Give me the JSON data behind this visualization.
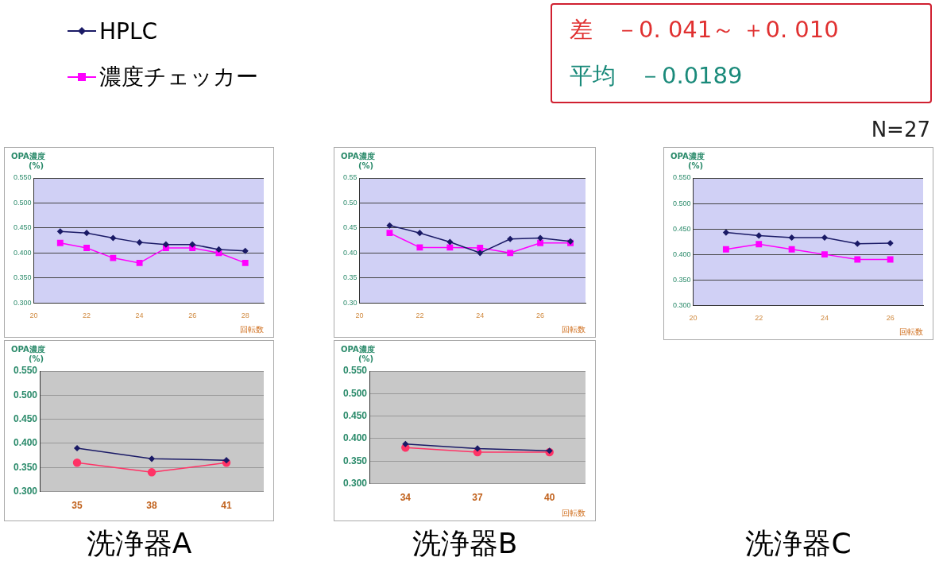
{
  "chart_data": [
    {
      "type": "line",
      "xlabel": "回転数",
      "ylabel": "OPA濃度\n(%)",
      "x": [
        21,
        22,
        23,
        24,
        25,
        26,
        27,
        28
      ],
      "xlim": [
        20,
        28.7
      ],
      "xticks": [
        20,
        22,
        24,
        26,
        28
      ],
      "ylim": [
        0.3,
        0.55
      ],
      "yticks": [
        {
          "value": 0.3,
          "label": "0.300"
        },
        {
          "value": 0.35,
          "label": "0.350"
        },
        {
          "value": 0.4,
          "label": "0.400"
        },
        {
          "value": 0.45,
          "label": "0.450"
        },
        {
          "value": 0.5,
          "label": "0.500"
        },
        {
          "value": 0.55,
          "label": "0.550"
        }
      ],
      "grid": "y",
      "legend": "top",
      "annotations": [
        "差　－0. 041～ ＋0. 010",
        "平均　－0.0189",
        "N=27"
      ],
      "series": [
        {
          "name": "HPLC",
          "color": "#1a1a66",
          "marker": "diamond",
          "values": [
            0.443,
            0.44,
            0.43,
            0.421,
            0.417,
            0.417,
            0.407,
            0.404
          ]
        },
        {
          "name": "濃度チェッカー",
          "color": "#ff00ff",
          "marker": "square",
          "values": [
            0.42,
            0.41,
            0.39,
            0.38,
            0.41,
            0.41,
            0.4,
            0.38
          ]
        }
      ]
    },
    {
      "type": "line",
      "xlabel": "回転数",
      "ylabel": "OPA濃度\n(%)",
      "x": [
        21,
        22,
        23,
        24,
        25,
        26,
        27
      ],
      "xlim": [
        20,
        27.5
      ],
      "xticks": [
        20,
        22,
        24,
        26
      ],
      "ylim": [
        0.3,
        0.55
      ],
      "yticks": [
        {
          "value": 0.3,
          "label": "0.30"
        },
        0.35,
        {
          "value": 0.4,
          "label": "0.40"
        },
        0.45,
        {
          "value": 0.5,
          "label": "0.50"
        },
        0.55
      ],
      "grid": "y",
      "series": [
        {
          "color": "#1a1a66",
          "marker": "diamond",
          "values": [
            0.455,
            0.44,
            0.422,
            0.4,
            0.428,
            0.43,
            0.423
          ]
        },
        {
          "color": "#ff00ff",
          "marker": "square",
          "values": [
            0.44,
            0.411,
            0.411,
            0.41,
            0.4,
            0.42,
            0.42
          ]
        }
      ]
    },
    {
      "type": "line",
      "title": "洗浄器C",
      "xlabel": "回転数",
      "ylabel": "OPA濃度\n(%)",
      "x": [
        21,
        22,
        23,
        24,
        25,
        26
      ],
      "xlim": [
        20,
        27
      ],
      "xticks": [
        20,
        22,
        24,
        26
      ],
      "ylim": [
        0.3,
        0.55
      ],
      "yticks": [
        {
          "value": 0.3,
          "label": "0.300"
        },
        {
          "value": 0.35,
          "label": "0.350"
        },
        {
          "value": 0.4,
          "label": "0.400"
        },
        {
          "value": 0.45,
          "label": "0.450"
        },
        {
          "value": 0.5,
          "label": "0.500"
        },
        {
          "value": 0.55,
          "label": "0.550"
        }
      ],
      "grid": "y",
      "series": [
        {
          "color": "#1a1a66",
          "marker": "diamond",
          "values": [
            0.443,
            0.437,
            0.433,
            0.433,
            0.421,
            0.422
          ]
        },
        {
          "color": "#ff00ff",
          "marker": "square",
          "values": [
            0.41,
            0.42,
            0.41,
            0.4,
            0.39,
            0.39
          ]
        }
      ]
    },
    {
      "type": "line",
      "title": "洗浄器A",
      "ylabel": "OPA濃度\n(%)",
      "categories": [
        "35",
        "38",
        "41"
      ],
      "ylim": [
        0.3,
        0.55
      ],
      "yticks": [
        {
          "value": 0.3,
          "label": "0.300"
        },
        {
          "value": 0.35,
          "label": "0.350"
        },
        {
          "value": 0.4,
          "label": "0.400"
        },
        {
          "value": 0.45,
          "label": "0.450"
        },
        {
          "value": 0.5,
          "label": "0.500"
        },
        {
          "value": 0.55,
          "label": "0.550"
        }
      ],
      "grid": "y",
      "series": [
        {
          "color": "#1a1a66",
          "marker": "diamond",
          "values": [
            0.39,
            0.368,
            0.365
          ]
        },
        {
          "color": "#ff3366",
          "marker": "circle",
          "values": [
            0.36,
            0.34,
            0.36
          ]
        }
      ]
    },
    {
      "type": "line",
      "title": "洗浄器B",
      "xlabel": "回転数",
      "ylabel": "OPA濃度\n(%)",
      "categories": [
        "34",
        "37",
        "40"
      ],
      "ylim": [
        0.3,
        0.55
      ],
      "yticks": [
        {
          "value": 0.3,
          "label": "0.300"
        },
        {
          "value": 0.35,
          "label": "0.350"
        },
        {
          "value": 0.4,
          "label": "0.400"
        },
        {
          "value": 0.45,
          "label": "0.450"
        },
        {
          "value": 0.5,
          "label": "0.500"
        },
        {
          "value": 0.55,
          "label": "0.550"
        }
      ],
      "grid": "y",
      "series": [
        {
          "color": "#1a1a66",
          "marker": "diamond",
          "values": [
            0.388,
            0.378,
            0.373
          ]
        },
        {
          "color": "#ff3366",
          "marker": "circle",
          "values": [
            0.38,
            0.37,
            0.37
          ]
        }
      ]
    }
  ]
}
